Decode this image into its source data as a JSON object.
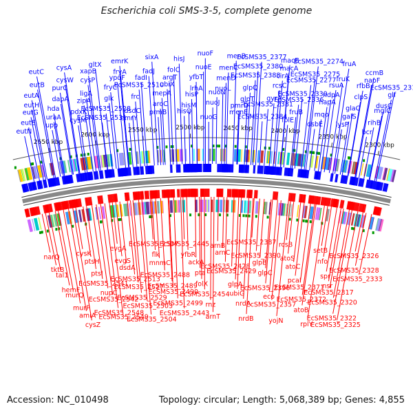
{
  "title": "Escherichia coli SMS-3-5, complete genome",
  "footer": {
    "accession": "Accession: NC_010498",
    "summary": "Topology: circular; Length: 5,068,389 bp; Genes: 4,855"
  },
  "colors": {
    "forward": "#0000ff",
    "reverse": "#ff0000",
    "backbone": "#888888"
  },
  "kbp_ticks": [
    "2650 kbp",
    "2600 kbp",
    "2550 kbp",
    "2500 kbp",
    "2450 kbp",
    "2400 kbp",
    "2350 kbp",
    "2300 kbp"
  ],
  "top_genes": [
    "eutN",
    "eutE",
    "eutG",
    "eutH",
    "eutA",
    "eutB",
    "eutC",
    "upp",
    "uraA",
    "hda",
    "dapA",
    "purC",
    "cysW",
    "cysA",
    "cysM",
    "pdxK",
    "zipA",
    "ligA",
    "cysP",
    "xapB",
    "gltX",
    "EcSMS35_2531",
    "EcSMS35_2528",
    "glk",
    "fryC",
    "ypdF",
    "fryA",
    "emrK",
    "emrY",
    "dsdC",
    "frc",
    "EcSMS35_2510",
    "fadI",
    "fadJ",
    "sixA",
    "prmB",
    "aroC",
    "mepA",
    "ubiX",
    "argT",
    "folC",
    "hisJ",
    "hisQ",
    "hisM",
    "hisP",
    "lrhA",
    "yfbT",
    "nuoE",
    "nuoF",
    "nuoG",
    "nuoJ",
    "nuoN",
    "nuoL",
    "menD",
    "menC",
    "menB",
    "menE",
    "pmrD",
    "glpT",
    "glpQ",
    "EcSMS35_2388",
    "EcSMS35_2380",
    "EcSMS35_2377",
    "EcSMS35_2384",
    "EcSMS35_2381",
    "gyrA",
    "rcsC",
    "cirA",
    "macA",
    "macB",
    "folE",
    "fruB",
    "EcSMS35_2336",
    "EcSMS35_2330",
    "EcSMS35_2277",
    "EcSMS35_2275",
    "EcSMS35_2274",
    "dsbE",
    "mqo",
    "napA",
    "ndpA",
    "rsuA",
    "fruK",
    "fruA",
    "lysP",
    "galS",
    "glaC",
    "clpS",
    "rfbB",
    "napF",
    "ccmB",
    "bcr",
    "rihB",
    "mglC",
    "dusC",
    "glf",
    "EcSMS35_2318"
  ],
  "bottom_genes": [
    "narQ",
    "tktB",
    "tal1",
    "hemF",
    "murQ",
    "murP",
    "amiA",
    "cysZ",
    "cysK",
    "ptsH",
    "ptsI",
    "EcSMS35_2541",
    "nupC",
    "EcSMS35_2542",
    "EcSMS35_2548",
    "EcSMS35_2549",
    "evgA",
    "evgS",
    "dsdA",
    "EcSMS35_2513",
    "EcSMS35_2527",
    "EcSMS35_2529",
    "EcSMS35_2503",
    "EcSMS35_2504",
    "EcSMS35_2507",
    "flk",
    "mnmC",
    "EcSMS35_2488",
    "EcSMS35_2489",
    "EcSMS35_2490",
    "EcSMS35_2499",
    "EcSMS35_2443",
    "EcSMS35_2445",
    "yfbR",
    "ackA",
    "pta",
    "folX",
    "EcSMS35_2454",
    "rnz",
    "arnT",
    "arnB",
    "arnC",
    "EcSMS35_2428",
    "EcSMS35_2429",
    "glpA",
    "ubiG",
    "nrdA",
    "nrdB",
    "EcSMS35_2387",
    "EcSMS35_2390",
    "glpB",
    "glpC",
    "EcSMS35_2396",
    "eco",
    "EcSMS35_2357",
    "yojN",
    "rcsB",
    "atoS",
    "atoC",
    "pcaI",
    "EcSMS35_2371",
    "EcSMS35_2372",
    "atoB",
    "rplY",
    "setB",
    "nfo",
    "spr",
    "nsr",
    "EcSMS35_2317",
    "EcSMS35_2320",
    "EcSMS35_2322",
    "EcSMS35_2325",
    "EcSMS35_2326",
    "EcSMS35_2328",
    "EcSMS35_2333"
  ]
}
